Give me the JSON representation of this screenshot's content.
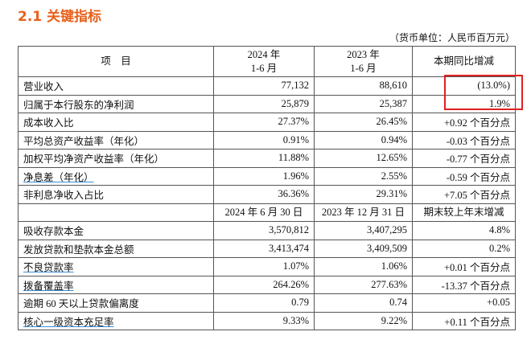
{
  "header": {
    "title": "2.1 关键指标",
    "unit_note": "（货币单位：人民币百万元）"
  },
  "table": {
    "header_row": [
      [
        "项　目"
      ],
      [
        "2024 年",
        "1-6 月"
      ],
      [
        "2023 年",
        "1-6 月"
      ],
      [
        "本期同比增减"
      ]
    ],
    "rows": [
      [
        "营业收入",
        "77,132",
        "88,610",
        "(13.0%)"
      ],
      [
        "归属于本行股东的净利润",
        "25,879",
        "25,387",
        "1.9%"
      ],
      [
        "成本收入比",
        "27.37%",
        "26.45%",
        "+0.92 个百分点"
      ],
      [
        "平均总资产收益率（年化）",
        "0.91%",
        "0.94%",
        "-0.03 个百分点"
      ],
      [
        "加权平均净资产收益率（年化）",
        "11.88%",
        "12.65%",
        "-0.77 个百分点"
      ],
      [
        "净息差（年化）",
        "1.96%",
        "2.55%",
        "-0.59 个百分点"
      ],
      [
        "非利息净收入占比",
        "36.36%",
        "29.31%",
        "+7.05 个百分点"
      ]
    ],
    "header_row_2": [
      "2024 年 6 月 30 日",
      "2023 年 12 月 31 日",
      "期末较上年末增减"
    ],
    "rows_2": [
      [
        "吸收存款本金",
        "3,570,812",
        "3,407,295",
        "4.8%"
      ],
      [
        "发放贷款和垫款本金总额",
        "3,413,474",
        "3,409,509",
        "0.2%"
      ],
      [
        "不良贷款率",
        "1.07%",
        "1.06%",
        "+0.01 个百分点"
      ],
      [
        "拨备覆盖率",
        "264.26%",
        "277.63%",
        "-13.37 个百分点"
      ],
      [
        "逾期 60 天以上贷款偏离度",
        "0.79",
        "0.74",
        "+0.05"
      ],
      [
        "核心一级资本充足率",
        "9.33%",
        "9.22%",
        "+0.11 个百分点"
      ]
    ]
  }
}
